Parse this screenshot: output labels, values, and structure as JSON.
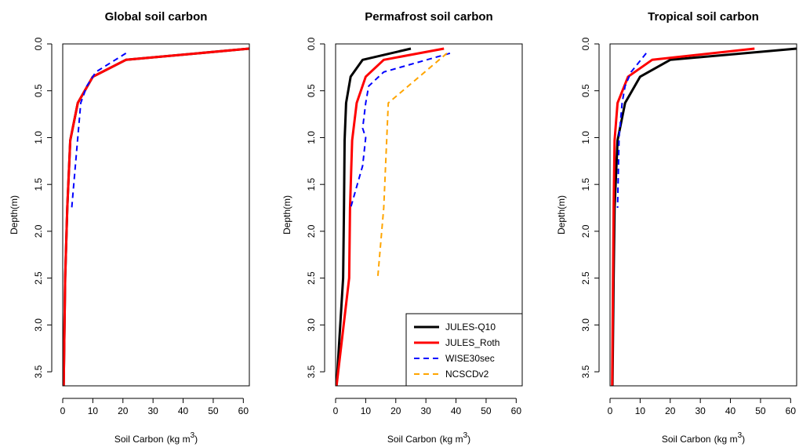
{
  "chart_data": [
    {
      "type": "line",
      "title": "Global soil carbon",
      "xlabel": "Soil Carbon",
      "xlabel_unit": "(kg m",
      "xlabel_exp": "3",
      "xlabel_close": ")",
      "ylabel": "Depth(m)",
      "xlim": [
        0,
        62
      ],
      "ylim": [
        3.65,
        0
      ],
      "xticks": [
        0,
        10,
        20,
        30,
        40,
        50,
        60
      ],
      "yticks": [
        0.0,
        0.5,
        1.0,
        1.5,
        2.0,
        2.5,
        3.0,
        3.5
      ],
      "ytick_labels": [
        "0.0",
        "0.5",
        "1.0",
        "1.5",
        "2.0",
        "2.5",
        "3.0",
        "3.5"
      ],
      "series": [
        {
          "name": "JULES-Q10",
          "color": "#000000",
          "dash": "solid",
          "x": [
            62,
            21,
            10,
            5,
            2.5,
            1.5,
            0.8,
            0.3
          ],
          "y": [
            0.05,
            0.17,
            0.35,
            0.63,
            1.03,
            1.75,
            2.5,
            3.65
          ]
        },
        {
          "name": "JULES_Roth",
          "color": "#ff0000",
          "dash": "solid",
          "x": [
            62,
            21,
            10,
            5,
            2.5,
            1.5,
            0.8,
            0.3
          ],
          "y": [
            0.05,
            0.17,
            0.35,
            0.63,
            1.03,
            1.75,
            2.5,
            3.65
          ]
        },
        {
          "name": "WISE30sec",
          "color": "#0000ff",
          "dash": "dashed",
          "x": [
            21,
            11,
            8,
            6,
            5,
            3
          ],
          "y": [
            0.1,
            0.3,
            0.45,
            0.63,
            1.0,
            1.75
          ]
        }
      ]
    },
    {
      "type": "line",
      "title": "Permafrost soil carbon",
      "xlabel": "Soil Carbon",
      "xlabel_unit": "(kg m",
      "xlabel_exp": "3",
      "xlabel_close": ")",
      "ylabel": "Depth(m)",
      "xlim": [
        0,
        62
      ],
      "ylim": [
        3.65,
        0
      ],
      "xticks": [
        0,
        10,
        20,
        30,
        40,
        50,
        60
      ],
      "yticks": [
        0.0,
        0.5,
        1.0,
        1.5,
        2.0,
        2.5,
        3.0,
        3.5
      ],
      "ytick_labels": [
        "0.0",
        "0.5",
        "1.0",
        "1.5",
        "2.0",
        "2.5",
        "3.0",
        "3.5"
      ],
      "legend": {
        "position": "bottom-right",
        "entries": [
          "JULES-Q10",
          "JULES_Roth",
          "WISE30sec",
          "NCSCDv2"
        ]
      },
      "series": [
        {
          "name": "JULES-Q10",
          "color": "#000000",
          "dash": "solid",
          "x": [
            25,
            9,
            5,
            3.5,
            3,
            2.8,
            2.5,
            0.3
          ],
          "y": [
            0.05,
            0.17,
            0.35,
            0.63,
            1.03,
            1.75,
            2.5,
            3.65
          ]
        },
        {
          "name": "JULES_Roth",
          "color": "#ff0000",
          "dash": "solid",
          "x": [
            36,
            16,
            10,
            7,
            5.5,
            4.8,
            4.5,
            0.3
          ],
          "y": [
            0.05,
            0.17,
            0.35,
            0.63,
            1.03,
            1.75,
            2.5,
            3.65
          ]
        },
        {
          "name": "WISE30sec",
          "color": "#0000ff",
          "dash": "dashed",
          "x": [
            38,
            16,
            11,
            10,
            9,
            10,
            9,
            5
          ],
          "y": [
            0.1,
            0.3,
            0.45,
            0.63,
            0.9,
            1.0,
            1.3,
            1.75
          ]
        },
        {
          "name": "NCSCDv2",
          "color": "#ffa500",
          "dash": "dashed",
          "x": [
            37,
            17.5,
            17,
            16,
            14
          ],
          "y": [
            0.1,
            0.63,
            1.0,
            1.75,
            2.5
          ]
        }
      ]
    },
    {
      "type": "line",
      "title": "Tropical soil carbon",
      "xlabel": "Soil Carbon",
      "xlabel_unit": "(kg m",
      "xlabel_exp": "3",
      "xlabel_close": ")",
      "ylabel": "Depth(m)",
      "xlim": [
        0,
        62
      ],
      "ylim": [
        3.65,
        0
      ],
      "xticks": [
        0,
        10,
        20,
        30,
        40,
        50,
        60
      ],
      "yticks": [
        0.0,
        0.5,
        1.0,
        1.5,
        2.0,
        2.5,
        3.0,
        3.5
      ],
      "ytick_labels": [
        "0.0",
        "0.5",
        "1.0",
        "1.5",
        "2.0",
        "2.5",
        "3.0",
        "3.5"
      ],
      "series": [
        {
          "name": "JULES-Q10",
          "color": "#000000",
          "dash": "solid",
          "x": [
            62,
            20,
            10,
            5,
            2.5,
            1.5,
            1.2,
            0.8
          ],
          "y": [
            0.05,
            0.17,
            0.35,
            0.63,
            1.03,
            1.75,
            2.5,
            3.65
          ]
        },
        {
          "name": "JULES_Roth",
          "color": "#ff0000",
          "dash": "solid",
          "x": [
            48,
            14,
            6,
            2.5,
            1.5,
            1.2,
            1.0,
            0.7
          ],
          "y": [
            0.05,
            0.17,
            0.35,
            0.63,
            1.03,
            1.75,
            2.5,
            3.65
          ]
        },
        {
          "name": "WISE30sec",
          "color": "#0000ff",
          "dash": "dashed",
          "x": [
            12,
            7,
            5,
            4,
            3,
            2.5
          ],
          "y": [
            0.1,
            0.3,
            0.45,
            0.63,
            1.0,
            1.75
          ]
        }
      ]
    }
  ]
}
